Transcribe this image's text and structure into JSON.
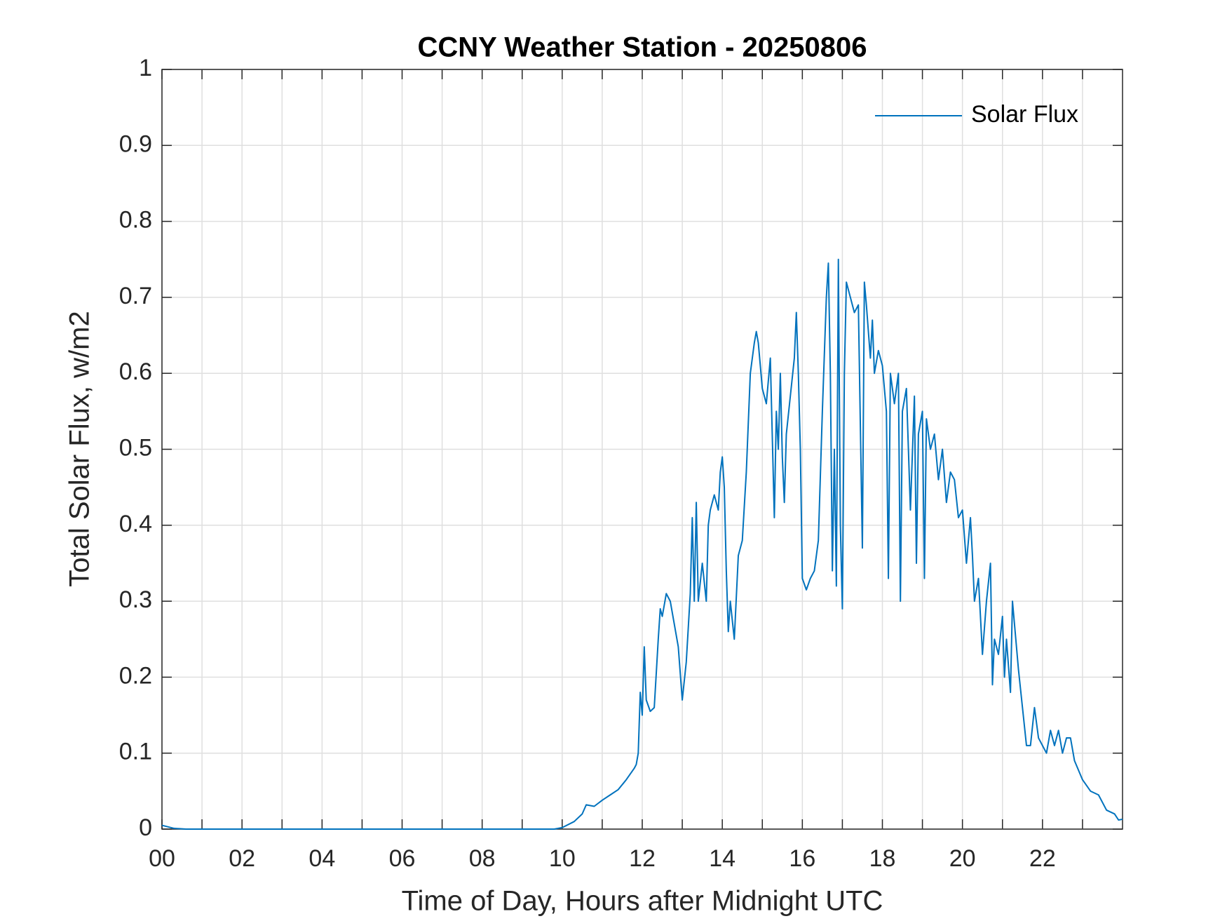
{
  "chart_data": {
    "type": "line",
    "title": "CCNY Weather Station - 20250806",
    "xlabel": "Time of Day, Hours after Midnight UTC",
    "ylabel": "Total Solar Flux, w/m2",
    "x": [
      0,
      0.3,
      0.6,
      1,
      2,
      3,
      4,
      5,
      6,
      7,
      8,
      9,
      9.8,
      10.0,
      10.3,
      10.5,
      10.6,
      10.8,
      11.0,
      11.2,
      11.4,
      11.6,
      11.8,
      11.85,
      11.9,
      11.95,
      12.0,
      12.05,
      12.1,
      12.2,
      12.3,
      12.4,
      12.45,
      12.5,
      12.6,
      12.7,
      12.8,
      12.9,
      13.0,
      13.1,
      13.2,
      13.25,
      13.3,
      13.35,
      13.4,
      13.5,
      13.6,
      13.65,
      13.7,
      13.8,
      13.9,
      13.95,
      14.0,
      14.05,
      14.1,
      14.15,
      14.2,
      14.3,
      14.4,
      14.5,
      14.6,
      14.7,
      14.8,
      14.85,
      14.9,
      15.0,
      15.1,
      15.2,
      15.3,
      15.35,
      15.4,
      15.45,
      15.5,
      15.55,
      15.6,
      15.7,
      15.8,
      15.85,
      15.9,
      15.95,
      16.0,
      16.1,
      16.2,
      16.3,
      16.4,
      16.5,
      16.6,
      16.65,
      16.7,
      16.75,
      16.8,
      16.85,
      16.9,
      16.95,
      17.0,
      17.05,
      17.1,
      17.2,
      17.3,
      17.4,
      17.5,
      17.55,
      17.6,
      17.7,
      17.75,
      17.8,
      17.9,
      18.0,
      18.1,
      18.15,
      18.2,
      18.3,
      18.4,
      18.45,
      18.5,
      18.6,
      18.7,
      18.8,
      18.85,
      18.9,
      19.0,
      19.05,
      19.1,
      19.2,
      19.3,
      19.4,
      19.5,
      19.6,
      19.7,
      19.8,
      19.9,
      20.0,
      20.1,
      20.2,
      20.25,
      20.3,
      20.4,
      20.5,
      20.6,
      20.7,
      20.75,
      20.8,
      20.9,
      21.0,
      21.05,
      21.1,
      21.2,
      21.25,
      21.3,
      21.4,
      21.5,
      21.6,
      21.7,
      21.8,
      21.9,
      22.0,
      22.1,
      22.2,
      22.3,
      22.4,
      22.5,
      22.6,
      22.7,
      22.8,
      23.0,
      23.2,
      23.4,
      23.6,
      23.8,
      23.9,
      24.0
    ],
    "series": [
      {
        "name": "Solar Flux",
        "color": "#0072bd",
        "values": [
          0.005,
          0.001,
          0,
          0,
          0,
          0,
          0,
          0,
          0,
          0,
          0,
          0,
          0,
          0.002,
          0.01,
          0.02,
          0.032,
          0.03,
          0.038,
          0.045,
          0.052,
          0.065,
          0.08,
          0.085,
          0.1,
          0.18,
          0.15,
          0.24,
          0.17,
          0.155,
          0.16,
          0.25,
          0.29,
          0.28,
          0.31,
          0.3,
          0.27,
          0.24,
          0.17,
          0.22,
          0.31,
          0.41,
          0.3,
          0.43,
          0.3,
          0.35,
          0.3,
          0.4,
          0.42,
          0.44,
          0.42,
          0.47,
          0.49,
          0.45,
          0.34,
          0.26,
          0.3,
          0.25,
          0.36,
          0.38,
          0.47,
          0.6,
          0.64,
          0.655,
          0.64,
          0.58,
          0.56,
          0.62,
          0.41,
          0.55,
          0.5,
          0.6,
          0.49,
          0.43,
          0.52,
          0.57,
          0.62,
          0.68,
          0.6,
          0.5,
          0.33,
          0.315,
          0.33,
          0.34,
          0.38,
          0.55,
          0.7,
          0.745,
          0.6,
          0.34,
          0.5,
          0.32,
          0.75,
          0.4,
          0.29,
          0.6,
          0.72,
          0.7,
          0.68,
          0.69,
          0.37,
          0.72,
          0.69,
          0.62,
          0.67,
          0.6,
          0.63,
          0.61,
          0.55,
          0.33,
          0.6,
          0.56,
          0.6,
          0.3,
          0.55,
          0.58,
          0.42,
          0.57,
          0.35,
          0.52,
          0.55,
          0.33,
          0.54,
          0.5,
          0.52,
          0.46,
          0.5,
          0.43,
          0.47,
          0.46,
          0.41,
          0.42,
          0.35,
          0.41,
          0.36,
          0.3,
          0.33,
          0.23,
          0.3,
          0.35,
          0.19,
          0.25,
          0.23,
          0.28,
          0.2,
          0.25,
          0.18,
          0.3,
          0.27,
          0.21,
          0.16,
          0.11,
          0.11,
          0.16,
          0.12,
          0.11,
          0.1,
          0.13,
          0.11,
          0.13,
          0.1,
          0.12,
          0.12,
          0.09,
          0.065,
          0.05,
          0.045,
          0.025,
          0.02,
          0.012,
          0.013
        ]
      }
    ],
    "xlim": [
      0,
      24
    ],
    "ylim": [
      0,
      1
    ],
    "xticks": [
      {
        "value": 0,
        "label": "00"
      },
      {
        "value": 2,
        "label": "02"
      },
      {
        "value": 4,
        "label": "04"
      },
      {
        "value": 6,
        "label": "06"
      },
      {
        "value": 8,
        "label": "08"
      },
      10,
      12,
      14,
      16,
      18,
      20,
      22
    ],
    "xminorticks": [
      1,
      3,
      5,
      7,
      9,
      11,
      13,
      15,
      17,
      19,
      21,
      23
    ],
    "yticks": [
      0,
      0.1,
      0.2,
      0.3,
      0.4,
      0.5,
      0.6,
      0.7,
      0.8,
      0.9,
      1
    ],
    "grid": true,
    "legend": "upper-right"
  }
}
